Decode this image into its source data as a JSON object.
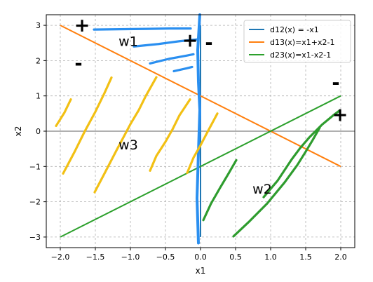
{
  "chart_data": {
    "type": "line",
    "xlabel": "x1",
    "ylabel": "x2",
    "xlim": [
      -2.2,
      2.2
    ],
    "ylim": [
      -3.3,
      3.3
    ],
    "x_ticks": [
      -2.0,
      -1.5,
      -1.0,
      -0.5,
      0.0,
      0.5,
      1.0,
      1.5,
      2.0
    ],
    "y_ticks": [
      -3,
      -2,
      -1,
      0,
      1,
      2,
      3
    ],
    "x_tick_labels": [
      "-2.0",
      "-1.5",
      "-1.0",
      "-0.5",
      "0.0",
      "0.5",
      "1.0",
      "1.5",
      "2.0"
    ],
    "y_tick_labels": [
      "-3",
      "-2",
      "-1",
      "0",
      "1",
      "2",
      "3"
    ],
    "grid": true,
    "legend_position": "top-right",
    "zero_line_y": 0,
    "series": [
      {
        "name": "d12(x) = -x1",
        "color": "#1f77b4",
        "x": [
          0,
          0
        ],
        "y": [
          -3,
          3
        ]
      },
      {
        "name": "d13(x)=x1+x2-1",
        "color": "#ff7f0e",
        "x": [
          -2,
          2
        ],
        "y": [
          3,
          -1
        ]
      },
      {
        "name": "d23(x)=x1-x2-1",
        "color": "#2ca02c",
        "x": [
          -2,
          2
        ],
        "y": [
          -3,
          1
        ]
      }
    ],
    "annotations": [
      {
        "text": "w1",
        "x": -1.03,
        "y": 2.55
      },
      {
        "text": "w2",
        "x": 0.88,
        "y": -1.63
      },
      {
        "text": "w3",
        "x": -1.03,
        "y": -0.38
      },
      {
        "text": "+",
        "x": -1.69,
        "y": 3.0
      },
      {
        "text": "-",
        "x": -1.74,
        "y": 1.92
      },
      {
        "text": "+",
        "x": -0.15,
        "y": 2.57
      },
      {
        "text": "-",
        "x": 0.12,
        "y": 2.5
      },
      {
        "text": "-",
        "x": 1.93,
        "y": 1.37
      },
      {
        "text": "+",
        "x": 1.99,
        "y": 0.47
      }
    ],
    "highlight_strokes": [
      {
        "region": "w1",
        "color": "#2a8ff0",
        "segments": [
          [
            [
              -1.52,
              2.88
            ],
            [
              -1.15,
              2.89
            ],
            [
              -0.75,
              2.9
            ],
            [
              -0.45,
              2.91
            ],
            [
              -0.14,
              2.91
            ]
          ],
          [
            [
              -0.95,
              2.4
            ],
            [
              -0.6,
              2.47
            ],
            [
              -0.3,
              2.55
            ],
            [
              -0.05,
              2.6
            ]
          ],
          [
            [
              -0.72,
              1.92
            ],
            [
              -0.45,
              2.05
            ],
            [
              -0.2,
              2.14
            ],
            [
              -0.1,
              2.18
            ]
          ],
          [
            [
              -0.38,
              1.7
            ],
            [
              -0.2,
              1.78
            ],
            [
              -0.12,
              1.82
            ]
          ]
        ]
      },
      {
        "region": "d12-trace",
        "color": "#2a8ff0",
        "segments": [
          [
            [
              -0.03,
              -3.17
            ],
            [
              -0.05,
              -1.9
            ],
            [
              -0.03,
              -0.6
            ],
            [
              -0.01,
              0.6
            ],
            [
              -0.03,
              1.4
            ],
            [
              -0.04,
              2.3
            ],
            [
              -0.01,
              3.3
            ]
          ]
        ]
      },
      {
        "region": "w3",
        "color": "#f2c014",
        "segments": [
          [
            [
              -2.06,
              0.15
            ],
            [
              -1.94,
              0.53
            ],
            [
              -1.85,
              0.9
            ]
          ],
          [
            [
              -1.96,
              -1.2
            ],
            [
              -1.8,
              -0.6
            ],
            [
              -1.65,
              0.0
            ],
            [
              -1.5,
              0.55
            ],
            [
              -1.37,
              1.08
            ],
            [
              -1.27,
              1.52
            ]
          ],
          [
            [
              -1.51,
              -1.73
            ],
            [
              -1.37,
              -1.2
            ],
            [
              -1.2,
              -0.55
            ],
            [
              -1.0,
              0.2
            ],
            [
              -0.88,
              0.6
            ],
            [
              -0.78,
              1.0
            ],
            [
              -0.63,
              1.53
            ]
          ],
          [
            [
              -0.72,
              -1.12
            ],
            [
              -0.63,
              -0.7
            ],
            [
              -0.5,
              -0.3
            ],
            [
              -0.4,
              0.05
            ],
            [
              -0.3,
              0.45
            ],
            [
              -0.15,
              0.9
            ]
          ],
          [
            [
              -0.19,
              -1.18
            ],
            [
              -0.1,
              -0.75
            ],
            [
              0.0,
              -0.4
            ],
            [
              0.1,
              -0.02
            ],
            [
              0.2,
              0.35
            ],
            [
              0.24,
              0.5
            ]
          ]
        ]
      },
      {
        "region": "w2",
        "color": "#2e9c2e",
        "segments": [
          [
            [
              0.04,
              -2.52
            ],
            [
              0.15,
              -2.05
            ],
            [
              0.28,
              -1.6
            ],
            [
              0.4,
              -1.2
            ],
            [
              0.51,
              -0.82
            ]
          ],
          [
            [
              0.47,
              -2.98
            ],
            [
              0.7,
              -2.55
            ],
            [
              0.95,
              -2.05
            ],
            [
              1.2,
              -1.45
            ],
            [
              1.38,
              -0.96
            ],
            [
              1.5,
              -0.58
            ],
            [
              1.6,
              -0.25
            ],
            [
              1.7,
              0.1
            ]
          ],
          [
            [
              0.9,
              -1.87
            ],
            [
              1.1,
              -1.4
            ],
            [
              1.3,
              -0.8
            ],
            [
              1.42,
              -0.48
            ],
            [
              1.55,
              -0.18
            ],
            [
              1.73,
              0.18
            ],
            [
              1.9,
              0.46
            ],
            [
              1.98,
              0.58
            ]
          ]
        ]
      }
    ]
  }
}
